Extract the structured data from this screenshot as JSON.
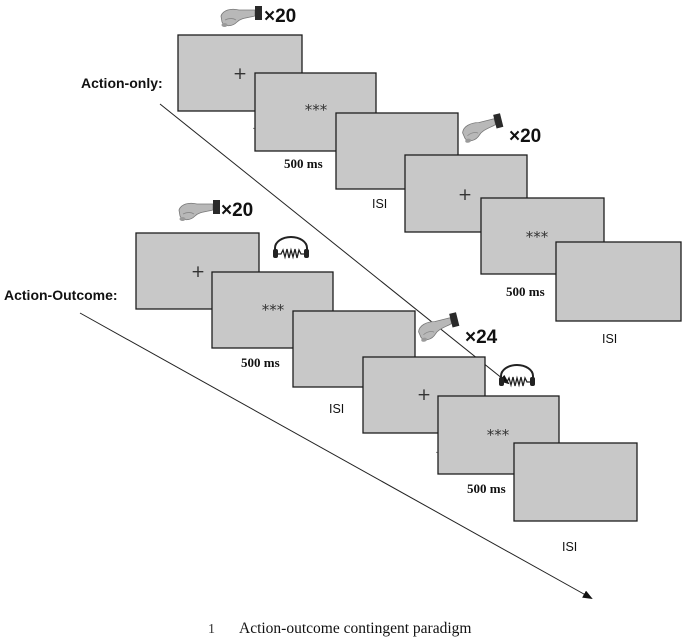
{
  "rows": {
    "action_only": {
      "label": "Action-only:",
      "block1": {
        "press_count": "×20",
        "fixation": "+",
        "stimulus": "***",
        "duration": "500 ms",
        "interval": "ISI"
      },
      "block2": {
        "press_count": "×20",
        "fixation": "+",
        "stimulus": "***",
        "duration": "500 ms",
        "interval": "ISI"
      }
    },
    "action_outcome": {
      "label": "Action-Outcome:",
      "block1": {
        "press_count": "×20",
        "fixation": "+",
        "stimulus": "***",
        "duration": "500 ms",
        "interval": "ISI"
      },
      "block2": {
        "press_count": "×24",
        "fixation": "+",
        "stimulus": "***",
        "duration": "500 ms",
        "interval": "ISI"
      }
    }
  },
  "caption": {
    "figure_number": "1",
    "text": "Action-outcome contingent paradigm"
  }
}
